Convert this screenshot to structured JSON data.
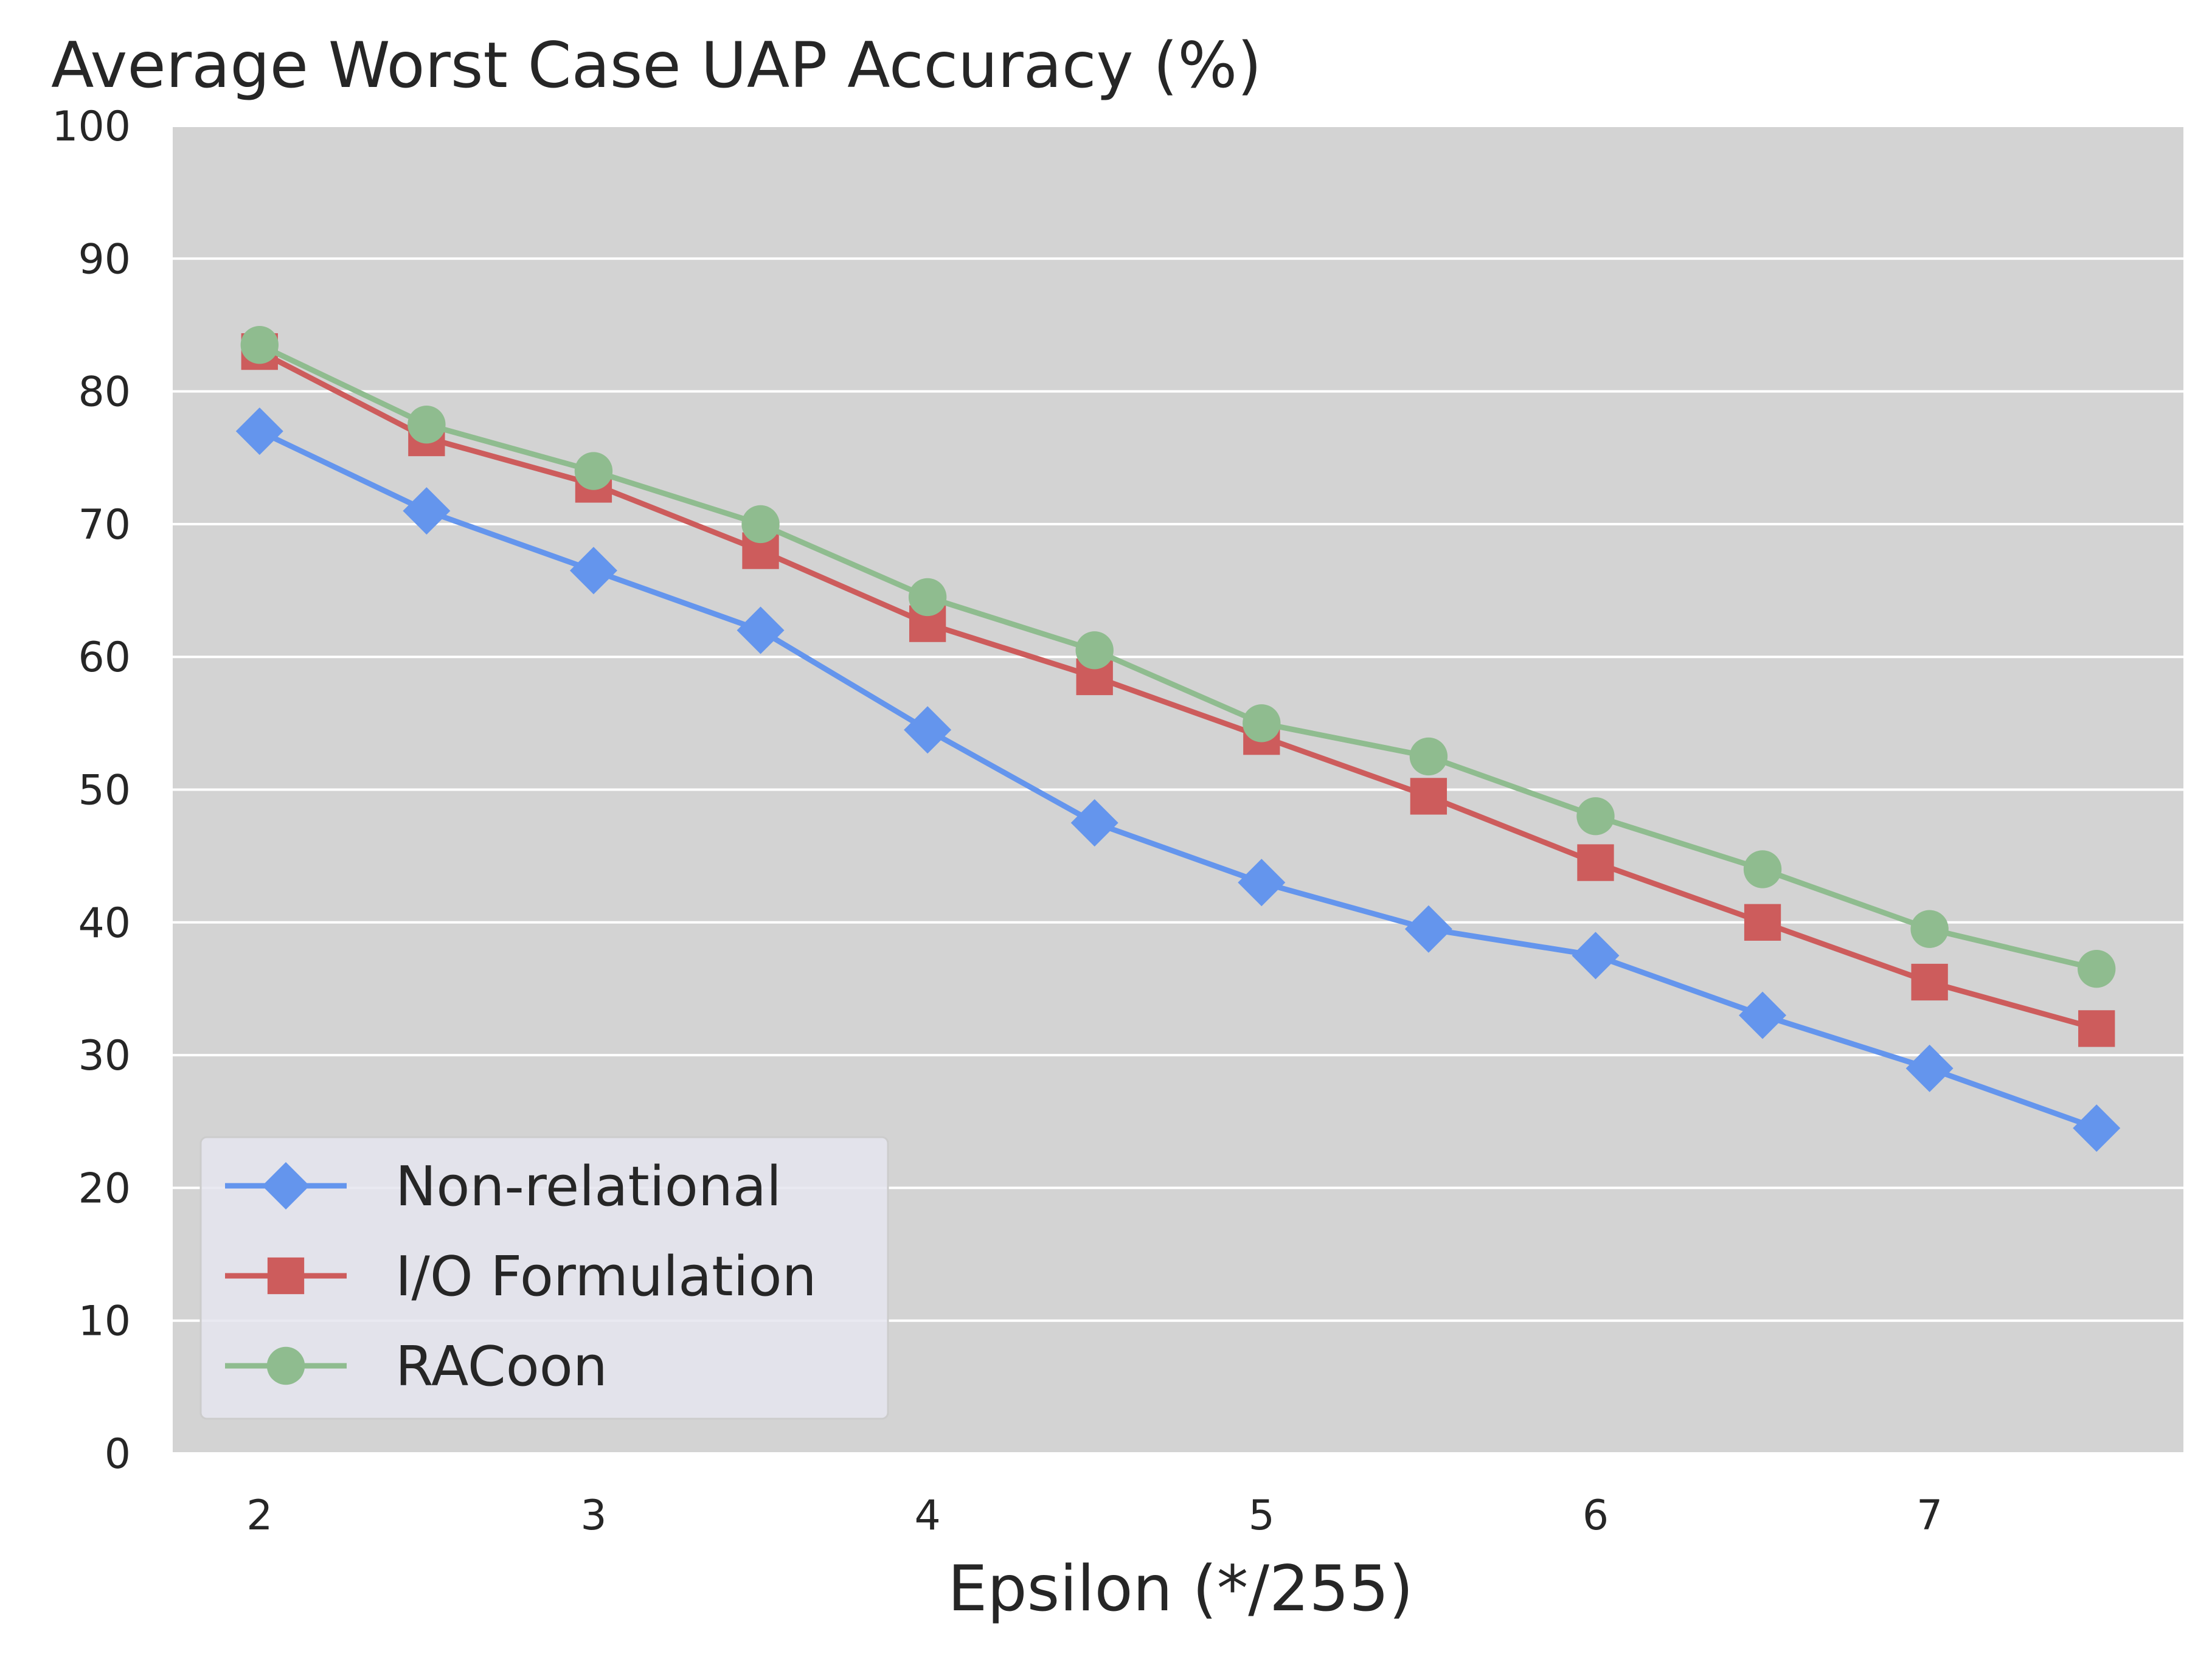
{
  "chart_data": {
    "type": "line",
    "title": "Average Worst Case UAP Accuracy (%)",
    "xlabel": "Epsilon (*/255)",
    "ylabel": "",
    "xlim": [
      1.74,
      7.76
    ],
    "ylim": [
      0,
      100
    ],
    "x": [
      2,
      2.5,
      3,
      3.5,
      4,
      4.5,
      5,
      5.5,
      6,
      6.5,
      7,
      7.5
    ],
    "x_ticks": [
      2,
      3,
      4,
      5,
      6,
      7
    ],
    "y_ticks": [
      0,
      10,
      20,
      30,
      40,
      50,
      60,
      70,
      80,
      90,
      100
    ],
    "grid": "horizontal",
    "legend_position": "lower-left",
    "series": [
      {
        "name": "Non-relational",
        "color": "#6495ed",
        "marker": "diamond",
        "values": [
          77,
          71,
          66.5,
          62,
          54.5,
          47.5,
          43,
          39.5,
          37.5,
          33,
          29,
          24.5
        ]
      },
      {
        "name": "I/O Formulation",
        "color": "#cd5c5c",
        "marker": "square",
        "values": [
          83,
          76.5,
          73,
          68,
          62.5,
          58.5,
          54,
          49.5,
          44.5,
          40,
          35.5,
          32
        ]
      },
      {
        "name": "RACoon",
        "color": "#8fbc8f",
        "marker": "circle",
        "values": [
          83.5,
          77.5,
          74,
          70,
          64.5,
          60.5,
          55,
          52.5,
          48,
          44,
          39.5,
          36.5
        ]
      }
    ],
    "colors": {
      "plot_background": "#d3d3d3",
      "grid": "#ffffff",
      "legend_background": "#e5e5ee"
    }
  }
}
